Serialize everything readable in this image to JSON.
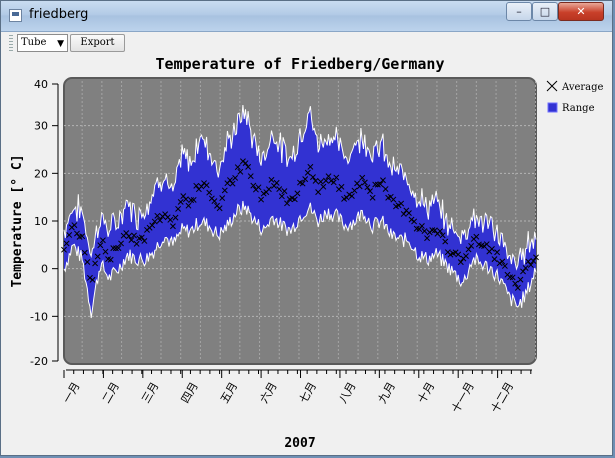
{
  "window": {
    "title": "friedberg",
    "min_glyph": "–",
    "max_glyph": "□",
    "close_glyph": "✕"
  },
  "toolbar": {
    "curve_style": "Tube",
    "export_label": "Export"
  },
  "chart_data": {
    "type": "area",
    "title": "Temperature of Friedberg/Germany",
    "ylabel": "Temperature [° C]",
    "xlabel": "2007",
    "ylim": [
      -20,
      40
    ],
    "xlim": [
      1,
      365
    ],
    "yticks": [
      -20,
      -10,
      0,
      10,
      20,
      30,
      40
    ],
    "x_tick_labels": [
      "一月",
      "二月",
      "三月",
      "四月",
      "五月",
      "六月",
      "七月",
      "八月",
      "九月",
      "十月",
      "十一月",
      "十二月"
    ],
    "grid": true,
    "legend_position": "right",
    "colors": {
      "plot_background": "#808080",
      "range_fill": "#3232d2",
      "range_edge": "#ffffff",
      "average_marker": "#000000"
    },
    "series": [
      {
        "name": "Average",
        "anchors_x": [
          1,
          8,
          15,
          22,
          29,
          36,
          43,
          50,
          57,
          64,
          71,
          78,
          85,
          92,
          99,
          106,
          113,
          120,
          127,
          134,
          141,
          148,
          155,
          162,
          169,
          176,
          183,
          190,
          197,
          204,
          211,
          218,
          225,
          232,
          239,
          246,
          253,
          260,
          267,
          274,
          281,
          288,
          295,
          302,
          309,
          316,
          323,
          330,
          337,
          344,
          351,
          358,
          365
        ],
        "values": [
          4,
          9,
          7,
          -3,
          6,
          2,
          5,
          8,
          6,
          7,
          10,
          12,
          9,
          15,
          14,
          18,
          16,
          13,
          17,
          20,
          22,
          17,
          15,
          19,
          16,
          14,
          18,
          21,
          17,
          19,
          18,
          15,
          17,
          19,
          16,
          18,
          14,
          13,
          12,
          9,
          7,
          8,
          5,
          3,
          2,
          6,
          5,
          4,
          2,
          -2,
          -4,
          0,
          3
        ]
      },
      {
        "name": "Range",
        "anchors_x": [
          1,
          8,
          15,
          22,
          29,
          36,
          43,
          50,
          57,
          64,
          71,
          78,
          85,
          92,
          99,
          106,
          113,
          120,
          127,
          134,
          141,
          148,
          155,
          162,
          169,
          176,
          183,
          190,
          197,
          204,
          211,
          218,
          225,
          232,
          239,
          246,
          253,
          260,
          267,
          274,
          281,
          288,
          295,
          302,
          309,
          316,
          323,
          330,
          337,
          344,
          351,
          358,
          365
        ],
        "low": [
          0,
          5,
          2,
          -9,
          1,
          -2,
          0,
          3,
          2,
          2,
          4,
          7,
          5,
          8,
          8,
          10,
          9,
          7,
          9,
          12,
          13,
          10,
          8,
          11,
          9,
          8,
          11,
          13,
          10,
          12,
          11,
          9,
          10,
          12,
          9,
          10,
          7,
          6,
          6,
          3,
          2,
          3,
          1,
          -1,
          -3,
          2,
          1,
          0,
          -2,
          -6,
          -8,
          -5,
          0
        ],
        "high": [
          8,
          13,
          12,
          3,
          11,
          8,
          10,
          14,
          11,
          13,
          17,
          20,
          15,
          24,
          22,
          28,
          25,
          21,
          26,
          30,
          33,
          26,
          23,
          29,
          25,
          23,
          28,
          33,
          26,
          28,
          27,
          23,
          26,
          28,
          24,
          26,
          21,
          20,
          19,
          15,
          13,
          14,
          10,
          8,
          7,
          11,
          10,
          9,
          7,
          2,
          1,
          5,
          7
        ]
      }
    ]
  }
}
